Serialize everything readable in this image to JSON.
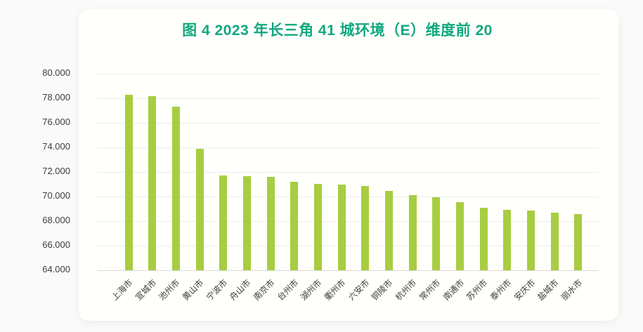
{
  "page": {
    "background": "#fafafa",
    "card_background": "#fffffc"
  },
  "chart_data": {
    "type": "bar",
    "title": "图 4 2023 年长三角 41 城环境（E）维度前 20",
    "title_color": "#10a87d",
    "categories": [
      "上海市",
      "宣城市",
      "池州市",
      "黄山市",
      "宁波市",
      "舟山市",
      "南京市",
      "台州市",
      "湖州市",
      "衢州市",
      "六安市",
      "铜陵市",
      "杭州市",
      "常州市",
      "南通市",
      "苏州市",
      "泰州市",
      "安庆市",
      "盐城市",
      "丽水市"
    ],
    "values": [
      78.3,
      78.2,
      77.3,
      73.9,
      71.7,
      71.65,
      71.6,
      71.2,
      71.05,
      70.95,
      70.85,
      70.45,
      70.1,
      69.95,
      69.55,
      69.1,
      68.9,
      68.85,
      68.7,
      68.6
    ],
    "xlabel": "",
    "ylabel": "",
    "ylim": [
      64,
      80
    ],
    "ytick_step": 2,
    "ytick_labels": [
      "80.000",
      "78.000",
      "76.000",
      "74.000",
      "72.000",
      "70.000",
      "68.000",
      "66.000",
      "64.000"
    ],
    "x_tick_rotation": 45,
    "bar_color": "#a7cd41",
    "grid": true,
    "grid_color": "#ececec",
    "axis_line_color": "#d9d9d9",
    "legend_position": "none"
  }
}
